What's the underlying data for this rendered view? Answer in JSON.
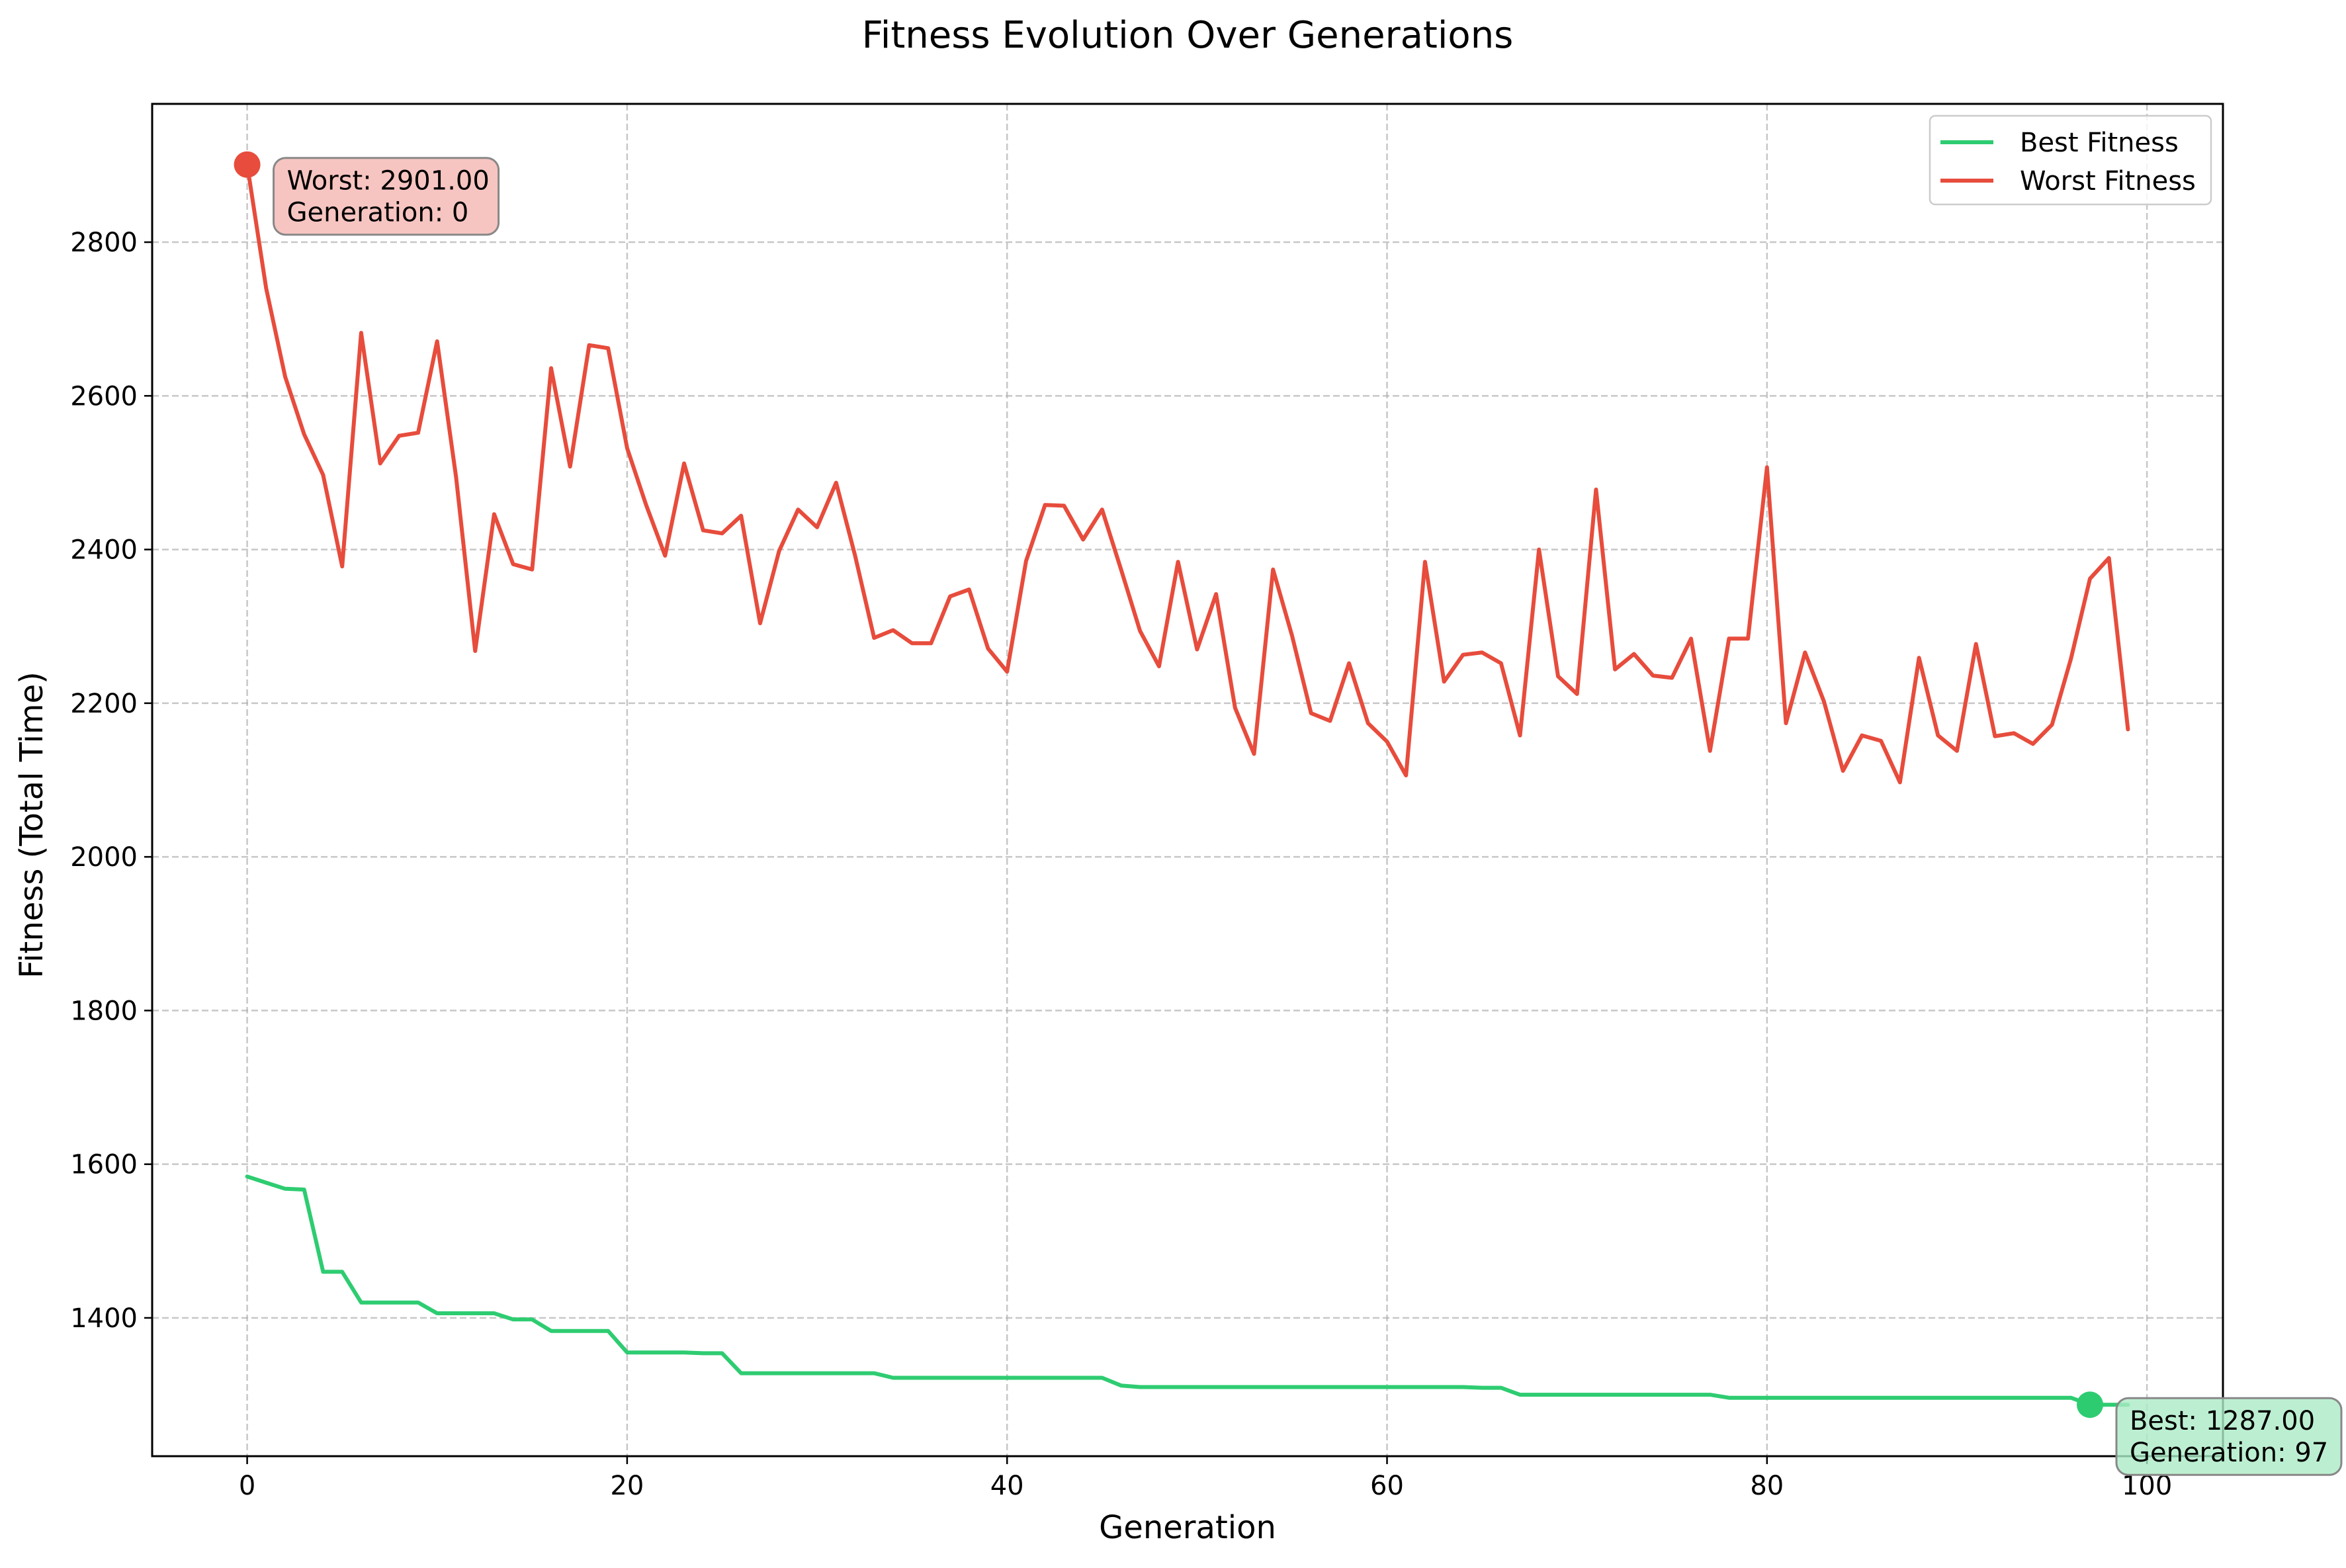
{
  "chart_data": {
    "type": "line",
    "title": "Fitness Evolution Over Generations",
    "xlabel": "Generation",
    "ylabel": "Fitness (Total Time)",
    "xlim": [
      -5,
      104
    ],
    "ylim": [
      1220,
      2980
    ],
    "xticks": [
      0,
      20,
      40,
      60,
      80,
      100
    ],
    "yticks": [
      1400,
      1600,
      1800,
      2000,
      2200,
      2400,
      2600,
      2800
    ],
    "grid": true,
    "legend_position": "top-right",
    "x": [
      0,
      1,
      2,
      3,
      4,
      5,
      6,
      7,
      8,
      9,
      10,
      11,
      12,
      13,
      14,
      15,
      16,
      17,
      18,
      19,
      20,
      21,
      22,
      23,
      24,
      25,
      26,
      27,
      28,
      29,
      30,
      31,
      32,
      33,
      34,
      35,
      36,
      37,
      38,
      39,
      40,
      41,
      42,
      43,
      44,
      45,
      46,
      47,
      48,
      49,
      50,
      51,
      52,
      53,
      54,
      55,
      56,
      57,
      58,
      59,
      60,
      61,
      62,
      63,
      64,
      65,
      66,
      67,
      68,
      69,
      70,
      71,
      72,
      73,
      74,
      75,
      76,
      77,
      78,
      79,
      80,
      81,
      82,
      83,
      84,
      85,
      86,
      87,
      88,
      89,
      90,
      91,
      92,
      93,
      94,
      95,
      96,
      97,
      98,
      99
    ],
    "series": [
      {
        "name": "Best Fitness",
        "color": "#2ecc71",
        "values": [
          1584,
          1576,
          1568,
          1567,
          1460,
          1460,
          1420,
          1420,
          1420,
          1420,
          1406,
          1406,
          1406,
          1406,
          1398,
          1398,
          1383,
          1383,
          1383,
          1383,
          1355,
          1355,
          1355,
          1355,
          1354,
          1354,
          1328,
          1328,
          1328,
          1328,
          1328,
          1328,
          1328,
          1328,
          1322,
          1322,
          1322,
          1322,
          1322,
          1322,
          1322,
          1322,
          1322,
          1322,
          1322,
          1322,
          1312,
          1310,
          1310,
          1310,
          1310,
          1310,
          1310,
          1310,
          1310,
          1310,
          1310,
          1310,
          1310,
          1310,
          1310,
          1310,
          1310,
          1310,
          1310,
          1309,
          1309,
          1300,
          1300,
          1300,
          1300,
          1300,
          1300,
          1300,
          1300,
          1300,
          1300,
          1300,
          1296,
          1296,
          1296,
          1296,
          1296,
          1296,
          1296,
          1296,
          1296,
          1296,
          1296,
          1296,
          1296,
          1296,
          1296,
          1296,
          1296,
          1296,
          1296,
          1287,
          1287,
          1287
        ]
      },
      {
        "name": "Worst Fitness",
        "color": "#e74c3c",
        "values": [
          2901,
          2740,
          2625,
          2550,
          2497,
          2378,
          2682,
          2512,
          2548,
          2552,
          2671,
          2494,
          2268,
          2446,
          2381,
          2374,
          2636,
          2508,
          2666,
          2662,
          2532,
          2458,
          2392,
          2512,
          2425,
          2421,
          2444,
          2304,
          2398,
          2452,
          2429,
          2487,
          2392,
          2285,
          2295,
          2278,
          2278,
          2339,
          2348,
          2271,
          2241,
          2385,
          2458,
          2457,
          2413,
          2452,
          2374,
          2294,
          2248,
          2384,
          2270,
          2342,
          2194,
          2134,
          2374,
          2288,
          2187,
          2177,
          2252,
          2174,
          2150,
          2106,
          2384,
          2228,
          2263,
          2266,
          2252,
          2158,
          2400,
          2235,
          2212,
          2478,
          2244,
          2264,
          2236,
          2233,
          2284,
          2138,
          2284,
          2284,
          2507,
          2174,
          2266,
          2202,
          2112,
          2158,
          2151,
          2097,
          2259,
          2158,
          2138,
          2277,
          2157,
          2161,
          2147,
          2172,
          2258,
          2362,
          2389,
          2166
        ]
      }
    ],
    "annotations": [
      {
        "series": "Worst Fitness",
        "line1": "Worst: 2901.00",
        "line2": "Generation: 0",
        "x": 0,
        "y": 2901,
        "box_color": "#f5b7b1",
        "marker_color": "#e74c3c"
      },
      {
        "series": "Best Fitness",
        "line1": "Best: 1287.00",
        "line2": "Generation: 97",
        "x": 97,
        "y": 1287,
        "box_color": "#abebc6",
        "marker_color": "#2ecc71"
      }
    ]
  }
}
